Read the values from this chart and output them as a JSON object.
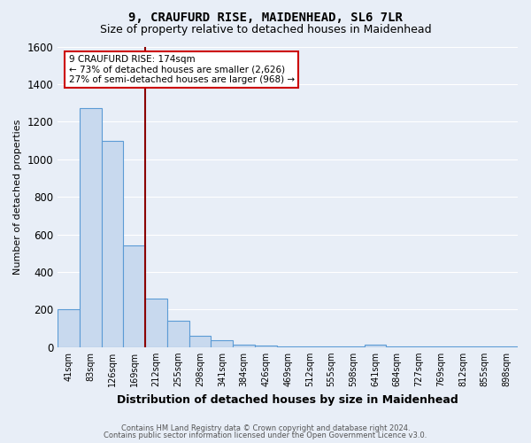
{
  "title": "9, CRAUFURD RISE, MAIDENHEAD, SL6 7LR",
  "subtitle": "Size of property relative to detached houses in Maidenhead",
  "xlabel": "Distribution of detached houses by size in Maidenhead",
  "ylabel": "Number of detached properties",
  "footer1": "Contains HM Land Registry data © Crown copyright and database right 2024.",
  "footer2": "Contains public sector information licensed under the Open Government Licence v3.0.",
  "annotation_line1": "9 CRAUFURD RISE: 174sqm",
  "annotation_line2": "← 73% of detached houses are smaller (2,626)",
  "annotation_line3": "27% of semi-detached houses are larger (968) →",
  "categories": [
    "41sqm",
    "83sqm",
    "126sqm",
    "169sqm",
    "212sqm",
    "255sqm",
    "298sqm",
    "341sqm",
    "384sqm",
    "426sqm",
    "469sqm",
    "512sqm",
    "555sqm",
    "598sqm",
    "641sqm",
    "684sqm",
    "727sqm",
    "769sqm",
    "812sqm",
    "855sqm",
    "898sqm"
  ],
  "values": [
    200,
    1270,
    1100,
    540,
    260,
    140,
    60,
    35,
    15,
    10,
    5,
    5,
    3,
    2,
    15,
    2,
    2,
    2,
    2,
    2,
    2
  ],
  "bar_color": "#c8d9ee",
  "bar_edge_color": "#5b9bd5",
  "property_line_color": "#8b0000",
  "ylim": [
    0,
    1600
  ],
  "yticks": [
    0,
    200,
    400,
    600,
    800,
    1000,
    1200,
    1400,
    1600
  ],
  "bg_color": "#e8eef7",
  "plot_bg_color": "#e8eef7",
  "annotation_box_color": "#ffffff",
  "annotation_box_edge": "#cc0000",
  "title_fontsize": 10,
  "subtitle_fontsize": 9,
  "grid_color": "#ffffff",
  "footer_color": "#555555"
}
